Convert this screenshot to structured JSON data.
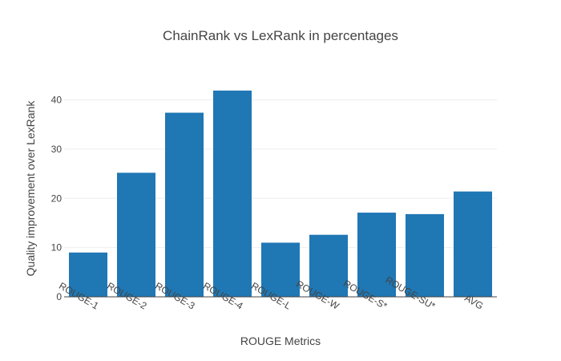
{
  "chart_data": {
    "type": "bar",
    "title": "ChainRank vs LexRank in percentages",
    "xlabel": "ROUGE Metrics",
    "ylabel": "Quality improvement over LexRank",
    "categories": [
      "ROUGE-1",
      "ROUGE-2",
      "ROUGE-3",
      "ROUGE-4",
      "ROUGE-L",
      "ROUGE-W",
      "ROUGE-S*",
      "ROUGE-SU*",
      "AVG"
    ],
    "values": [
      9.0,
      25.2,
      37.4,
      41.9,
      11.0,
      12.6,
      17.1,
      16.8,
      21.4
    ],
    "ylim": [
      0,
      44
    ],
    "yticks": [
      0,
      10,
      20,
      30,
      40
    ],
    "grid": true,
    "bar_color": "#1f77b4"
  }
}
